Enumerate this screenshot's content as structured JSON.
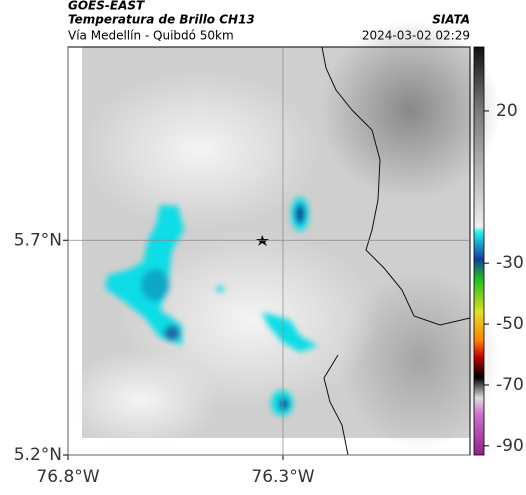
{
  "header": {
    "title": "GOES-EAST",
    "subtitle": "Temperatura de Brillo CH13",
    "source": "SIATA",
    "route": "Vía Medellín - Quibdó 50km",
    "datetime": "2024-03-02 02:29"
  },
  "map": {
    "xlim": [
      -76.8,
      -75.865
    ],
    "ylim": [
      5.2,
      6.15
    ],
    "xticks": [
      {
        "value": -76.8,
        "label": "76.8°W"
      },
      {
        "value": -76.3,
        "label": "76.3°W"
      }
    ],
    "yticks": [
      {
        "value": 5.2,
        "label": "5.2°N"
      },
      {
        "value": 5.7,
        "label": "5.7°N"
      }
    ],
    "grid": true
  },
  "colorbar": {
    "clim": [
      -93,
      41
    ],
    "ticks": [
      20,
      -30,
      -50,
      -70,
      -90
    ]
  }
}
